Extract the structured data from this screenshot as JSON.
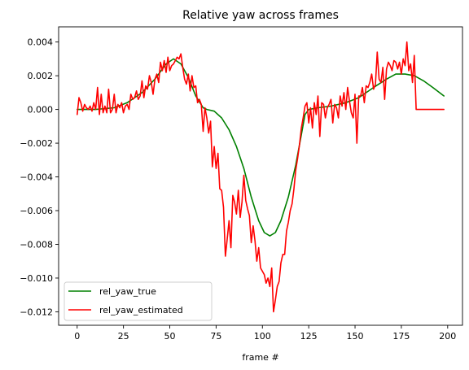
{
  "chart_data": {
    "type": "line",
    "title": "Relative yaw across frames",
    "xlabel": "frame #",
    "ylabel": "",
    "xlim": [
      -10,
      208
    ],
    "ylim": [
      -0.0128,
      0.0049
    ],
    "xticks": [
      0,
      25,
      50,
      75,
      100,
      125,
      150,
      175,
      200
    ],
    "xtick_labels": [
      "0",
      "25",
      "50",
      "75",
      "100",
      "125",
      "150",
      "175",
      "200"
    ],
    "yticks": [
      0.004,
      0.002,
      0.0,
      -0.002,
      -0.004,
      -0.006,
      -0.008,
      -0.01,
      -0.012
    ],
    "ytick_labels": [
      "0.004",
      "0.002",
      "0.000",
      "−0.002",
      "−0.004",
      "−0.006",
      "−0.008",
      "−0.010",
      "−0.012"
    ],
    "grid": false,
    "legend": "lower-left",
    "series": [
      {
        "name": "rel_yaw_true",
        "color": "#008000",
        "points": [
          [
            0,
            0.0
          ],
          [
            10,
            0.0
          ],
          [
            20,
            0.0001
          ],
          [
            27,
            0.0004
          ],
          [
            35,
            0.001
          ],
          [
            42,
            0.0018
          ],
          [
            48,
            0.0027
          ],
          [
            52,
            0.003
          ],
          [
            56,
            0.0027
          ],
          [
            60,
            0.0019
          ],
          [
            64,
            0.0008
          ],
          [
            68,
            0.0001
          ],
          [
            70,
            0.0
          ],
          [
            74,
            -0.0001
          ],
          [
            78,
            -0.0005
          ],
          [
            82,
            -0.0012
          ],
          [
            86,
            -0.0022
          ],
          [
            90,
            -0.0035
          ],
          [
            94,
            -0.0052
          ],
          [
            98,
            -0.0066
          ],
          [
            101,
            -0.0073
          ],
          [
            104,
            -0.0075
          ],
          [
            107,
            -0.0073
          ],
          [
            110,
            -0.0066
          ],
          [
            114,
            -0.0052
          ],
          [
            118,
            -0.0033
          ],
          [
            121,
            -0.0015
          ],
          [
            123,
            -0.0003
          ],
          [
            125,
            0.0
          ],
          [
            130,
            0.0001
          ],
          [
            137,
            0.0002
          ],
          [
            145,
            0.0004
          ],
          [
            152,
            0.0007
          ],
          [
            160,
            0.0013
          ],
          [
            167,
            0.0018
          ],
          [
            172,
            0.0021
          ],
          [
            177,
            0.0021
          ],
          [
            182,
            0.002
          ],
          [
            187,
            0.0017
          ],
          [
            192,
            0.0013
          ],
          [
            198,
            0.0008
          ]
        ]
      },
      {
        "name": "rel_yaw_estimated",
        "color": "#ff0000",
        "points": [
          [
            0,
            -0.0003
          ],
          [
            1,
            0.0007
          ],
          [
            2,
            0.0004
          ],
          [
            3,
            -0.0001
          ],
          [
            4,
            0.0003
          ],
          [
            5,
            0.0001
          ],
          [
            6,
            0.0
          ],
          [
            7,
            0.0002
          ],
          [
            8,
            -0.0001
          ],
          [
            9,
            0.0004
          ],
          [
            10,
            0.0
          ],
          [
            11,
            0.0013
          ],
          [
            12,
            -0.0003
          ],
          [
            13,
            0.0009
          ],
          [
            14,
            -0.0002
          ],
          [
            15,
            0.0002
          ],
          [
            16,
            -0.0002
          ],
          [
            17,
            0.0012
          ],
          [
            18,
            -0.0002
          ],
          [
            19,
            0.0
          ],
          [
            20,
            0.0009
          ],
          [
            21,
            -0.0002
          ],
          [
            22,
            0.0003
          ],
          [
            23,
            0.0001
          ],
          [
            24,
            0.0004
          ],
          [
            25,
            -0.0002
          ],
          [
            26,
            0.0002
          ],
          [
            27,
            0.0003
          ],
          [
            28,
            0.0
          ],
          [
            29,
            0.0009
          ],
          [
            30,
            0.0006
          ],
          [
            31,
            0.0007
          ],
          [
            32,
            0.0011
          ],
          [
            33,
            0.0006
          ],
          [
            34,
            0.0008
          ],
          [
            35,
            0.0017
          ],
          [
            36,
            0.0007
          ],
          [
            37,
            0.0014
          ],
          [
            38,
            0.0012
          ],
          [
            39,
            0.002
          ],
          [
            40,
            0.0016
          ],
          [
            41,
            0.0009
          ],
          [
            42,
            0.0018
          ],
          [
            43,
            0.0021
          ],
          [
            44,
            0.0016
          ],
          [
            45,
            0.0028
          ],
          [
            46,
            0.0023
          ],
          [
            47,
            0.0029
          ],
          [
            48,
            0.0022
          ],
          [
            49,
            0.0031
          ],
          [
            50,
            0.0023
          ],
          [
            51,
            0.0026
          ],
          [
            52,
            0.0027
          ],
          [
            53,
            0.0029
          ],
          [
            54,
            0.0031
          ],
          [
            55,
            0.003
          ],
          [
            56,
            0.0033
          ],
          [
            57,
            0.0025
          ],
          [
            58,
            0.0018
          ],
          [
            59,
            0.0015
          ],
          [
            60,
            0.0021
          ],
          [
            61,
            0.0011
          ],
          [
            62,
            0.002
          ],
          [
            63,
            0.0013
          ],
          [
            64,
            0.0014
          ],
          [
            65,
            0.0004
          ],
          [
            66,
            0.0006
          ],
          [
            67,
            0.0003
          ],
          [
            68,
            -0.0013
          ],
          [
            69,
            0.0001
          ],
          [
            70,
            -0.0005
          ],
          [
            71,
            -0.0014
          ],
          [
            72,
            -0.0007
          ],
          [
            73,
            -0.0034
          ],
          [
            74,
            -0.0022
          ],
          [
            75,
            -0.0035
          ],
          [
            76,
            -0.0026
          ],
          [
            77,
            -0.0047
          ],
          [
            78,
            -0.0048
          ],
          [
            79,
            -0.0058
          ],
          [
            80,
            -0.0087
          ],
          [
            81,
            -0.0077
          ],
          [
            82,
            -0.0066
          ],
          [
            83,
            -0.0082
          ],
          [
            84,
            -0.0051
          ],
          [
            85,
            -0.0055
          ],
          [
            86,
            -0.0062
          ],
          [
            87,
            -0.0048
          ],
          [
            88,
            -0.0064
          ],
          [
            89,
            -0.0055
          ],
          [
            90,
            -0.0039
          ],
          [
            91,
            -0.0054
          ],
          [
            92,
            -0.0059
          ],
          [
            93,
            -0.0063
          ],
          [
            94,
            -0.0079
          ],
          [
            95,
            -0.0069
          ],
          [
            96,
            -0.0078
          ],
          [
            97,
            -0.009
          ],
          [
            98,
            -0.0082
          ],
          [
            99,
            -0.0094
          ],
          [
            100,
            -0.0096
          ],
          [
            101,
            -0.0098
          ],
          [
            102,
            -0.0103
          ],
          [
            103,
            -0.01
          ],
          [
            104,
            -0.0105
          ],
          [
            105,
            -0.0094
          ],
          [
            106,
            -0.012
          ],
          [
            107,
            -0.0113
          ],
          [
            108,
            -0.0105
          ],
          [
            109,
            -0.0102
          ],
          [
            110,
            -0.0091
          ],
          [
            111,
            -0.0086
          ],
          [
            112,
            -0.0086
          ],
          [
            113,
            -0.0072
          ],
          [
            114,
            -0.0067
          ],
          [
            115,
            -0.006
          ],
          [
            116,
            -0.0056
          ],
          [
            117,
            -0.0047
          ],
          [
            118,
            -0.0036
          ],
          [
            119,
            -0.0029
          ],
          [
            120,
            -0.0021
          ],
          [
            121,
            -0.0011
          ],
          [
            122,
            -0.0005
          ],
          [
            123,
            0.0002
          ],
          [
            124,
            0.0004
          ],
          [
            125,
            -0.0008
          ],
          [
            126,
            0.0001
          ],
          [
            127,
            -0.0011
          ],
          [
            128,
            0.0004
          ],
          [
            129,
            -0.0003
          ],
          [
            130,
            0.0008
          ],
          [
            131,
            -0.0016
          ],
          [
            132,
            0.0004
          ],
          [
            133,
            0.0003
          ],
          [
            134,
            -0.0005
          ],
          [
            135,
            0.0001
          ],
          [
            136,
            0.0003
          ],
          [
            137,
            0.0006
          ],
          [
            138,
            -0.0008
          ],
          [
            139,
            0.0003
          ],
          [
            140,
            0.0001
          ],
          [
            141,
            -0.0005
          ],
          [
            142,
            0.0008
          ],
          [
            143,
            0.0002
          ],
          [
            144,
            0.001
          ],
          [
            145,
            0.0
          ],
          [
            146,
            0.0013
          ],
          [
            147,
            0.0005
          ],
          [
            148,
            -0.0002
          ],
          [
            149,
            -0.0005
          ],
          [
            150,
            0.0009
          ],
          [
            151,
            -0.002
          ],
          [
            152,
            0.0008
          ],
          [
            153,
            0.0008
          ],
          [
            154,
            0.0013
          ],
          [
            155,
            0.0004
          ],
          [
            156,
            0.0014
          ],
          [
            157,
            0.0013
          ],
          [
            158,
            0.0016
          ],
          [
            159,
            0.0021
          ],
          [
            160,
            0.0012
          ],
          [
            161,
            0.0015
          ],
          [
            162,
            0.0034
          ],
          [
            163,
            0.0018
          ],
          [
            164,
            0.0016
          ],
          [
            165,
            0.0025
          ],
          [
            166,
            0.0006
          ],
          [
            167,
            0.0024
          ],
          [
            168,
            0.0028
          ],
          [
            169,
            0.0026
          ],
          [
            170,
            0.0023
          ],
          [
            171,
            0.0029
          ],
          [
            172,
            0.0028
          ],
          [
            173,
            0.0024
          ],
          [
            174,
            0.0028
          ],
          [
            175,
            0.0021
          ],
          [
            176,
            0.003
          ],
          [
            177,
            0.0026
          ],
          [
            178,
            0.004
          ],
          [
            179,
            0.0023
          ],
          [
            180,
            0.0027
          ],
          [
            181,
            0.0016
          ],
          [
            182,
            0.0032
          ],
          [
            183,
            0.0
          ],
          [
            185,
            0.0
          ],
          [
            190,
            0.0
          ],
          [
            195,
            0.0
          ],
          [
            198,
            0.0
          ]
        ]
      }
    ]
  }
}
